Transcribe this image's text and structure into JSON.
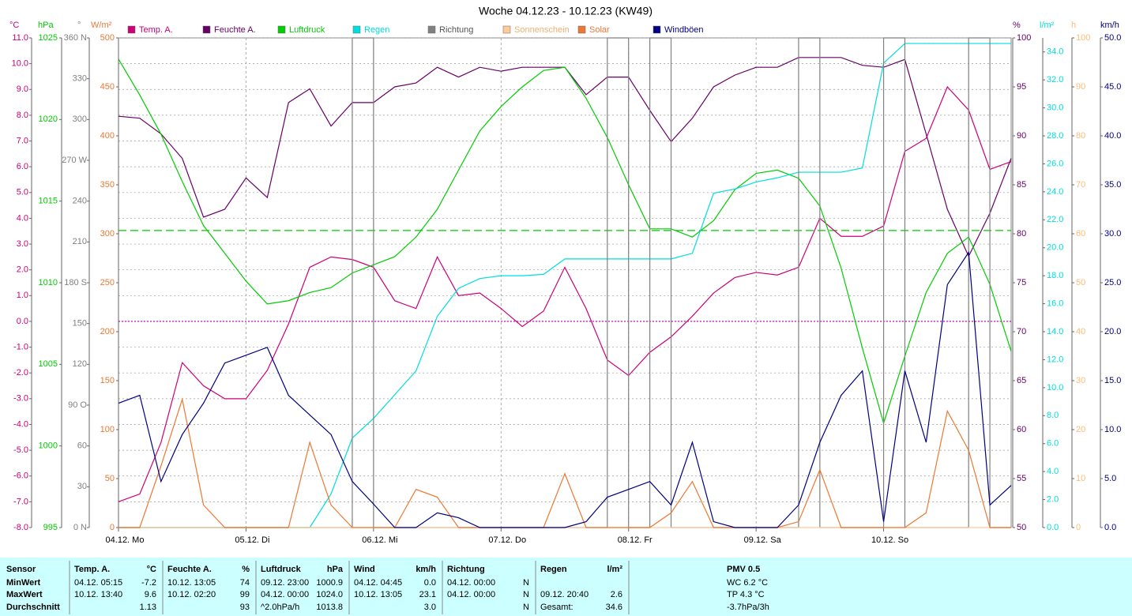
{
  "chart_data": {
    "type": "line",
    "title": "Woche 04.12.23 - 10.12.23 (KW49)",
    "x": [
      0,
      4,
      8,
      12,
      16,
      20,
      24,
      28,
      32,
      36,
      40,
      44,
      48,
      52,
      56,
      60,
      64,
      68,
      72,
      76,
      80,
      84,
      88,
      92,
      96,
      100,
      104,
      108,
      112,
      116,
      120,
      124,
      128,
      132,
      136,
      140,
      144,
      148,
      152,
      156,
      160,
      164,
      168
    ],
    "xlim": [
      0,
      168
    ],
    "xticks": [
      {
        "value": 0,
        "label": "04.12. Mo"
      },
      {
        "value": 24,
        "label": "05.12. Di"
      },
      {
        "value": 48,
        "label": "06.12. Mi"
      },
      {
        "value": 72,
        "label": "07.12. Do"
      },
      {
        "value": 96,
        "label": "08.12. Fr"
      },
      {
        "value": 120,
        "label": "09.12. Sa"
      },
      {
        "value": 144,
        "label": "10.12. So"
      }
    ],
    "grid": true,
    "axes": [
      {
        "unit": "°C",
        "color": "#cc0077",
        "ylim": [
          -8,
          11
        ],
        "yticks": [
          {
            "value": 11,
            "label": "11.0"
          },
          {
            "value": 10,
            "label": "10.0"
          },
          {
            "value": 9,
            "label": "9.0"
          },
          {
            "value": 8,
            "label": "8.0"
          },
          {
            "value": 7,
            "label": "7.0"
          },
          {
            "value": 6,
            "label": "6.0"
          },
          {
            "value": 5,
            "label": "5.0"
          },
          {
            "value": 4,
            "label": "4.0"
          },
          {
            "value": 3,
            "label": "3.0"
          },
          {
            "value": 2,
            "label": "2.0"
          },
          {
            "value": 1,
            "label": "1.0"
          },
          {
            "value": 0,
            "label": "0.0"
          },
          {
            "value": -1,
            "label": "-1.0"
          },
          {
            "value": -2,
            "label": "-2.0"
          },
          {
            "value": -3,
            "label": "-3.0"
          },
          {
            "value": -4,
            "label": "-4.0"
          },
          {
            "value": -5,
            "label": "-5.0"
          },
          {
            "value": -6,
            "label": "-6.0"
          },
          {
            "value": -7,
            "label": "-7.0"
          },
          {
            "value": -8,
            "label": "-8.0"
          }
        ]
      },
      {
        "unit": "hPa",
        "color": "#00cc00",
        "ylim": [
          995,
          1025
        ],
        "yticks": [
          1025,
          1020,
          1015,
          1010,
          1005,
          1000,
          995
        ]
      },
      {
        "unit": "°",
        "color": "#808080",
        "ylim": [
          0,
          360
        ],
        "yticks": [
          {
            "value": 360,
            "label": "360 N"
          },
          330,
          300,
          {
            "value": 270,
            "label": "270 W"
          },
          240,
          210,
          {
            "value": 180,
            "label": "180 S"
          },
          150,
          120,
          {
            "value": 90,
            "label": "90 O"
          },
          60,
          30,
          {
            "value": 0,
            "label": "0 N"
          }
        ]
      },
      {
        "unit": "W/m²",
        "color": "#ee7733",
        "ylim": [
          0,
          500
        ],
        "yticks": [
          500,
          450,
          400,
          350,
          300,
          250,
          200,
          150,
          100,
          50,
          0
        ]
      },
      {
        "unit": "%",
        "color": "#660066",
        "ylim": [
          50,
          100
        ],
        "yticks": [
          100,
          95,
          90,
          85,
          80,
          75,
          70,
          65,
          60,
          55,
          50
        ]
      },
      {
        "unit": "l/m²",
        "color": "#00dddd",
        "ylim": [
          0,
          35
        ],
        "yticks": [
          {
            "value": 34,
            "label": "34.0"
          },
          {
            "value": 32,
            "label": "32.0"
          },
          {
            "value": 30,
            "label": "30.0"
          },
          {
            "value": 28,
            "label": "28.0"
          },
          {
            "value": 26,
            "label": "26.0"
          },
          {
            "value": 24,
            "label": "24.0"
          },
          {
            "value": 22,
            "label": "22.0"
          },
          {
            "value": 20,
            "label": "20.0"
          },
          {
            "value": 18,
            "label": "18.0"
          },
          {
            "value": 16,
            "label": "16.0"
          },
          {
            "value": 14,
            "label": "14.0"
          },
          {
            "value": 12,
            "label": "12.0"
          },
          {
            "value": 10,
            "label": "10.0"
          },
          {
            "value": 8,
            "label": "8.0"
          },
          {
            "value": 6,
            "label": "6.0"
          },
          {
            "value": 4,
            "label": "4.0"
          },
          {
            "value": 2,
            "label": "2.0"
          },
          {
            "value": 0,
            "label": "0.0"
          }
        ]
      },
      {
        "unit": "h",
        "color": "#ffbb77",
        "ylim": [
          0,
          100
        ],
        "yticks": [
          100,
          90,
          80,
          70,
          60,
          50,
          40,
          30,
          20,
          10,
          0
        ]
      },
      {
        "unit": "km/h",
        "color": "#000080",
        "ylim": [
          0,
          50
        ],
        "yticks": [
          {
            "value": 50,
            "label": "50.0"
          },
          {
            "value": 45,
            "label": "45.0"
          },
          {
            "value": 40,
            "label": "40.0"
          },
          {
            "value": 35,
            "label": "35.0"
          },
          {
            "value": 30,
            "label": "30.0"
          },
          {
            "value": 25,
            "label": "25.0"
          },
          {
            "value": 20,
            "label": "20.0"
          },
          {
            "value": 15,
            "label": "15.0"
          },
          {
            "value": 10,
            "label": "10.0"
          },
          {
            "value": 5,
            "label": "5.0"
          },
          {
            "value": 0,
            "label": "0.0"
          }
        ]
      }
    ],
    "ref_lines": [
      {
        "axis": 1,
        "value": 1013.2,
        "color": "#00cc00",
        "dash": "10 5"
      },
      {
        "axis": 0,
        "value": 0,
        "color": "#aa00aa",
        "dash": "2 2"
      }
    ],
    "series": [
      {
        "name": "Temp. A.",
        "color": "#cc0077",
        "axis": 0,
        "values": [
          -7.0,
          -6.7,
          -4.7,
          -1.6,
          -2.5,
          -3.0,
          -3.0,
          -1.9,
          -0.1,
          2.1,
          2.5,
          2.4,
          2.1,
          0.8,
          0.5,
          2.5,
          1.0,
          1.1,
          0.5,
          -0.2,
          0.4,
          2.1,
          0.5,
          -1.5,
          -2.1,
          -1.2,
          -0.6,
          0.2,
          1.1,
          1.7,
          1.9,
          1.8,
          2.1,
          4.0,
          3.3,
          3.3,
          3.7,
          6.6,
          7.1,
          9.1,
          8.2,
          5.9,
          6.2
        ]
      },
      {
        "name": "Feuchte A.",
        "color": "#660066",
        "axis": 4,
        "values": [
          92.0,
          91.8,
          90.2,
          87.7,
          81.7,
          82.5,
          85.7,
          83.7,
          93.4,
          94.8,
          91.0,
          93.4,
          93.4,
          95.0,
          95.4,
          97.0,
          96.0,
          97.0,
          96.6,
          97.0,
          97.0,
          97.0,
          94.2,
          96.0,
          96.0,
          92.6,
          89.4,
          91.8,
          95.0,
          96.2,
          97.0,
          97.0,
          98.0,
          98.0,
          98.0,
          97.2,
          97.0,
          97.8,
          90.2,
          82.5,
          77.7,
          82.1,
          87.7
        ]
      },
      {
        "name": "Luftdruck",
        "color": "#00cc00",
        "axis": 1,
        "values": [
          1023.7,
          1021.5,
          1019.1,
          1016.2,
          1013.5,
          1011.8,
          1010.1,
          1008.7,
          1008.9,
          1009.4,
          1009.7,
          1010.6,
          1011.1,
          1011.6,
          1012.8,
          1014.5,
          1016.9,
          1019.3,
          1020.8,
          1022.0,
          1023.0,
          1023.2,
          1021.3,
          1018.9,
          1016.0,
          1013.3,
          1013.3,
          1012.8,
          1013.8,
          1015.7,
          1016.7,
          1016.9,
          1016.4,
          1014.7,
          1010.9,
          1006.0,
          1001.4,
          1005.5,
          1009.4,
          1011.8,
          1012.8,
          1009.9,
          1005.8
        ]
      },
      {
        "name": "Regen",
        "color": "#00dddd",
        "axis": 5,
        "values": [
          0,
          0,
          0,
          0,
          0,
          0,
          0,
          0,
          0,
          0,
          2.4,
          6.4,
          7.8,
          9.5,
          11.2,
          15.1,
          17.1,
          17.8,
          18.0,
          18.0,
          18.1,
          19.2,
          19.2,
          19.2,
          19.2,
          19.2,
          19.2,
          19.6,
          23.9,
          24.2,
          24.7,
          25.0,
          25.4,
          25.4,
          25.4,
          25.7,
          33.2,
          34.6,
          34.6,
          34.6,
          34.6,
          34.6,
          34.6
        ]
      },
      {
        "name": "Richtung",
        "color": "#808080",
        "axis": 2,
        "step": true,
        "values": [
          0,
          0,
          0,
          0,
          0,
          0,
          0,
          0,
          0,
          0,
          0,
          360,
          0,
          0,
          0,
          0,
          0,
          0,
          0,
          0,
          0,
          0,
          0,
          360,
          0,
          360,
          0,
          0,
          0,
          0,
          0,
          0,
          360,
          0,
          0,
          0,
          360,
          0,
          0,
          0,
          360,
          0,
          0
        ]
      },
      {
        "name": "Sonnenschein",
        "color": "#ffcc99",
        "axis": 6,
        "values": [
          0,
          0,
          0,
          0,
          0,
          0,
          0,
          0,
          0,
          0,
          0,
          0,
          0,
          0,
          0,
          0,
          0,
          0,
          0,
          0,
          0,
          0,
          0,
          0,
          0,
          0,
          0,
          0,
          0,
          0,
          0,
          0,
          0,
          0,
          0,
          0,
          0,
          0,
          0,
          0,
          0,
          0,
          0
        ]
      },
      {
        "name": "Solar",
        "color": "#ee7733",
        "axis": 3,
        "values": [
          0,
          0,
          63,
          131,
          23,
          0,
          0,
          0,
          0,
          87,
          23,
          0,
          0,
          0,
          39,
          31,
          0,
          0,
          0,
          0,
          0,
          55,
          0,
          0,
          0,
          0,
          15,
          47,
          0,
          0,
          0,
          0,
          6,
          59,
          0,
          0,
          0,
          0,
          15,
          119,
          79,
          0,
          0
        ]
      },
      {
        "name": "Windböen",
        "color": "#000080",
        "axis": 7,
        "values": [
          12.7,
          13.5,
          4.7,
          9.5,
          12.7,
          16.8,
          17.6,
          18.4,
          13.5,
          11.5,
          9.5,
          4.7,
          2.4,
          0,
          0,
          1.5,
          1.0,
          0,
          0,
          0,
          0,
          0,
          0.6,
          3.1,
          3.9,
          4.7,
          2.3,
          8.7,
          0.6,
          0,
          0,
          0,
          2.3,
          8.7,
          13.5,
          16.0,
          0.6,
          16.0,
          8.7,
          24.8,
          28.1,
          2.3,
          4.3
        ]
      }
    ]
  },
  "table": {
    "sensor": {
      "title": "Sensor",
      "rows": [
        "MinWert",
        "MaxWert",
        "Durchschnitt"
      ]
    },
    "columns": [
      {
        "title": "Temp. A.",
        "unit": "°C",
        "rows": [
          {
            "time": "04.12. 05:15",
            "value": "-7.2"
          },
          {
            "time": "10.12. 13:40",
            "value": "9.6"
          },
          {
            "value": "1.13"
          }
        ]
      },
      {
        "title": "Feuchte A.",
        "unit": "%",
        "rows": [
          {
            "time": "10.12. 13:05",
            "value": "74"
          },
          {
            "time": "10.12. 02:20",
            "value": "99"
          },
          {
            "value": "93"
          }
        ]
      },
      {
        "title": "Luftdruck",
        "unit": "hPa",
        "rows": [
          {
            "time": "09.12. 23:00",
            "value": "1000.9"
          },
          {
            "time": "04.12. 00:00",
            "value": "1024.0"
          },
          {
            "time": "^2.0hPa/h",
            "value": "1013.8"
          }
        ]
      },
      {
        "title": "Wind",
        "unit": "km/h",
        "rows": [
          {
            "time": "04.12. 04:45",
            "value": "0.0"
          },
          {
            "time": "10.12. 13:05",
            "value": "23.1"
          },
          {
            "value": "3.0"
          }
        ]
      },
      {
        "title": "Richtung",
        "rows": [
          {
            "time": "04.12. 00:00",
            "value": "N"
          },
          {
            "time": "04.12. 00:00",
            "value": "N"
          },
          {
            "value": "N"
          }
        ]
      },
      {
        "title": "Regen",
        "unit": "l/m²",
        "rows": [
          null,
          {
            "time": "09.12. 20:40",
            "value": "2.6"
          },
          {
            "time": "Gesamt:",
            "value": "34.6"
          }
        ]
      }
    ],
    "pmv": {
      "title": "PMV 0.5",
      "rows": [
        "WC 6.2 °C",
        "TP 4.3 °C",
        "-3.7hPa/3h"
      ]
    }
  }
}
